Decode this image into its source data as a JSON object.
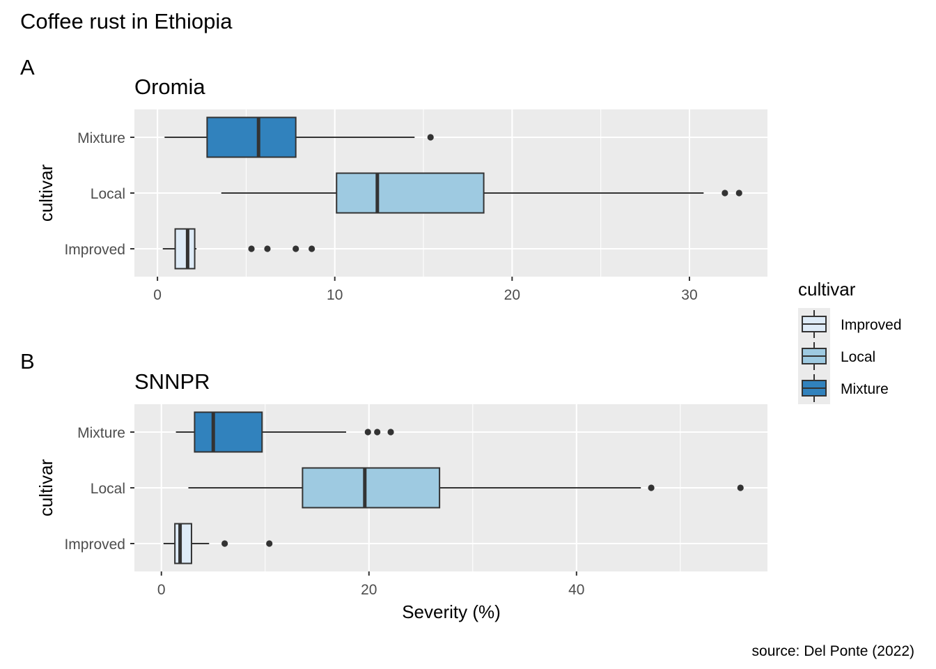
{
  "figure": {
    "title": "Coffee rust in Ethiopia",
    "caption": "source: Del Ponte (2022)",
    "xlabel": "Severity (%)"
  },
  "legend": {
    "title": "cultivar",
    "placement": "right",
    "items": [
      {
        "label": "Improved",
        "color": "#deebf7"
      },
      {
        "label": "Local",
        "color": "#9ecae1"
      },
      {
        "label": "Mixture",
        "color": "#3182bd"
      }
    ]
  },
  "colors": {
    "panel_bg": "#ebebeb",
    "grid": "#ffffff",
    "box_stroke": "#333333",
    "Improved": "#deebf7",
    "Local": "#9ecae1",
    "Mixture": "#3182bd"
  },
  "chart_data": [
    {
      "type": "boxplot",
      "tag": "A",
      "title": "Oromia",
      "ylabel": "cultivar",
      "categories": [
        "Mixture",
        "Local",
        "Improved"
      ],
      "xlim": [
        -1.3,
        34.4
      ],
      "xticks": [
        0,
        10,
        20,
        30
      ],
      "grid": true,
      "series": [
        {
          "name": "Mixture",
          "min": 0.4,
          "q1": 2.8,
          "median": 5.7,
          "q3": 7.8,
          "max": 14.5,
          "outliers": [
            15.4
          ]
        },
        {
          "name": "Local",
          "min": 3.6,
          "q1": 10.1,
          "median": 12.4,
          "q3": 18.4,
          "max": 30.8,
          "outliers": [
            32.0,
            32.8
          ]
        },
        {
          "name": "Improved",
          "min": 0.3,
          "q1": 1.0,
          "median": 1.7,
          "q3": 2.1,
          "max": 2.2,
          "outliers": [
            5.3,
            6.2,
            7.8,
            8.7
          ]
        }
      ]
    },
    {
      "type": "boxplot",
      "tag": "B",
      "title": "SNNPR",
      "ylabel": "cultivar",
      "categories": [
        "Mixture",
        "Local",
        "Improved"
      ],
      "xlim": [
        -2.6,
        58.4
      ],
      "xticks": [
        0,
        20,
        40
      ],
      "grid": true,
      "series": [
        {
          "name": "Mixture",
          "min": 1.4,
          "q1": 3.2,
          "median": 5.0,
          "q3": 9.7,
          "max": 17.8,
          "outliers": [
            19.9,
            20.8,
            22.1
          ]
        },
        {
          "name": "Local",
          "min": 2.6,
          "q1": 13.6,
          "median": 19.6,
          "q3": 26.8,
          "max": 46.2,
          "outliers": [
            47.2,
            55.8
          ]
        },
        {
          "name": "Improved",
          "min": 0.2,
          "q1": 1.3,
          "median": 1.8,
          "q3": 2.9,
          "max": 4.6,
          "outliers": [
            6.1,
            10.4
          ]
        }
      ]
    }
  ]
}
